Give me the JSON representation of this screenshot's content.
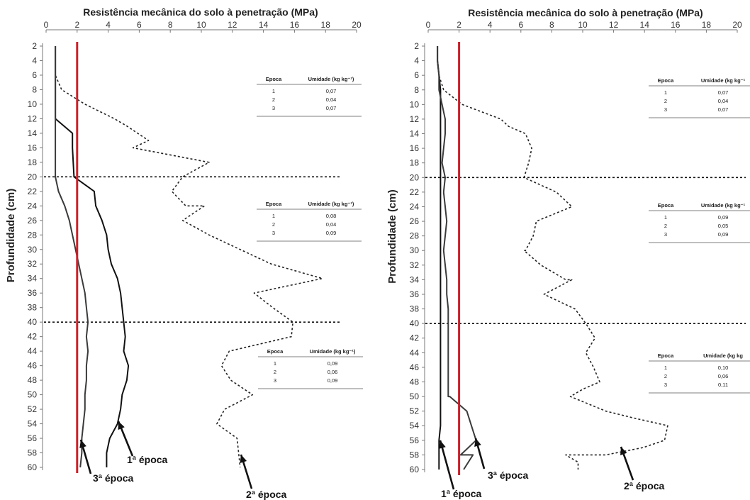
{
  "chart_data": [
    {
      "type": "line",
      "title": "Resistência mecânica do solo à penetração (MPa)",
      "ylabel": "Profundidade (cm)",
      "xlim": [
        0,
        20
      ],
      "ylim": [
        2,
        60
      ],
      "x_ticks": [
        0,
        2,
        4,
        6,
        8,
        10,
        12,
        14,
        16,
        18,
        20
      ],
      "y_ticks": [
        2,
        4,
        6,
        8,
        10,
        12,
        14,
        16,
        18,
        20,
        22,
        24,
        26,
        28,
        30,
        32,
        34,
        36,
        38,
        40,
        42,
        44,
        46,
        48,
        50,
        52,
        54,
        56,
        58,
        60
      ],
      "reference_line": {
        "x": 2,
        "color": "#c8202a"
      },
      "depth_dividers": [
        20,
        40
      ],
      "series": [
        {
          "name": "1ª época",
          "style": "solid",
          "x": [
            0.6,
            0.6,
            0.6,
            0.6,
            0.6,
            0.6,
            1.7,
            1.7,
            1.8,
            3.1,
            3.2,
            3.6,
            3.9,
            4.0,
            4.2,
            4.6,
            4.8,
            4.9,
            5.0,
            5.1,
            5.0,
            5.3,
            5.2,
            4.9,
            4.8,
            4.6,
            4.1,
            3.9,
            3.9,
            3.9
          ],
          "y": [
            2,
            4,
            6,
            8,
            10,
            12,
            14,
            16,
            20,
            22,
            24,
            26,
            28,
            30,
            32,
            34,
            36,
            38,
            40,
            42,
            44,
            46,
            48,
            50,
            52,
            54,
            56,
            58,
            60,
            60
          ]
        },
        {
          "name": "2ª época",
          "style": "dotted",
          "x": [
            0.6,
            0.6,
            0.6,
            1.0,
            2.5,
            4.4,
            5.2,
            6.6,
            5.6,
            10.5,
            8.8,
            8.1,
            9.0,
            10.2,
            8.8,
            10.5,
            12.5,
            14.5,
            17.8,
            13.4,
            14.6,
            15.9,
            15.8,
            11.8,
            11.3,
            11.9,
            13.3,
            11.5,
            11.0,
            12.3,
            12.5
          ],
          "y": [
            2,
            4,
            6,
            8,
            10,
            12,
            13,
            15,
            16,
            18,
            20,
            22,
            24,
            24,
            26,
            28,
            30,
            32,
            34,
            36,
            38,
            40,
            42,
            44,
            46,
            48,
            50,
            52,
            54,
            56,
            60
          ]
        },
        {
          "name": "3ª época",
          "style": "solid",
          "x": [
            0.6,
            0.6,
            0.6,
            0.6,
            0.6,
            0.6,
            0.6,
            0.6,
            0.6,
            0.6,
            0.8,
            1.2,
            1.5,
            1.7,
            1.9,
            2.1,
            2.3,
            2.5,
            2.6,
            2.7,
            2.6,
            2.7,
            2.6,
            2.6,
            2.5,
            2.5,
            2.4,
            2.3,
            2.3,
            2.2
          ],
          "y": [
            2,
            4,
            6,
            8,
            10,
            12,
            14,
            16,
            18,
            20,
            22,
            24,
            26,
            28,
            30,
            32,
            34,
            36,
            38,
            40,
            42,
            44,
            46,
            48,
            50,
            52,
            54,
            56,
            58,
            60
          ]
        }
      ],
      "tables": [
        {
          "header": [
            "Epoca",
            "Umidade (kg kg⁻¹)"
          ],
          "rows": [
            [
              "1",
              "0,07"
            ],
            [
              "2",
              "0,04"
            ],
            [
              "3",
              "0,07"
            ]
          ]
        },
        {
          "header": [
            "Epoca",
            "Umidade (kg kg⁻¹)"
          ],
          "rows": [
            [
              "1",
              "0,08"
            ],
            [
              "2",
              "0,04"
            ],
            [
              "3",
              "0,09"
            ]
          ]
        },
        {
          "header": [
            "Epoca",
            "Umidade (kg kg⁻¹)"
          ],
          "rows": [
            [
              "1",
              "0,09"
            ],
            [
              "2",
              "0,06"
            ],
            [
              "3",
              "0,09"
            ]
          ]
        }
      ],
      "annotations": [
        "1ª época",
        "3ª época",
        "2ª época"
      ]
    },
    {
      "type": "line",
      "title": "Resistência mecânica do solo à penetração (MPa)",
      "ylabel": "Profundidade (cm)",
      "xlim": [
        0,
        20
      ],
      "ylim": [
        2,
        60
      ],
      "x_ticks": [
        0,
        2,
        4,
        6,
        8,
        10,
        12,
        14,
        16,
        18,
        20
      ],
      "y_ticks": [
        2,
        4,
        6,
        8,
        10,
        12,
        14,
        16,
        18,
        20,
        22,
        24,
        26,
        28,
        30,
        32,
        34,
        36,
        38,
        40,
        42,
        44,
        46,
        48,
        50,
        52,
        54,
        56,
        58,
        60
      ],
      "reference_line": {
        "x": 2,
        "color": "#c8202a"
      },
      "depth_dividers": [
        20,
        40
      ],
      "series": [
        {
          "name": "1ª época",
          "style": "solid",
          "x": [
            0.6,
            0.6,
            0.7,
            0.8,
            0.8,
            0.8,
            0.8,
            0.8,
            0.8,
            0.8,
            0.8,
            0.8,
            0.8,
            0.8,
            0.8,
            0.8,
            0.8,
            0.8,
            0.8,
            0.8,
            0.8,
            0.8,
            0.8,
            0.8,
            0.8,
            0.8,
            0.8,
            0.7,
            0.7,
            0.7
          ],
          "y": [
            2,
            4,
            6,
            8,
            10,
            12,
            14,
            16,
            18,
            20,
            22,
            24,
            26,
            28,
            30,
            32,
            34,
            36,
            38,
            40,
            42,
            44,
            46,
            48,
            50,
            52,
            54,
            56,
            58,
            60
          ]
        },
        {
          "name": "2ª época",
          "style": "dotted",
          "x": [
            0.6,
            0.6,
            0.7,
            1.0,
            2.2,
            4.7,
            5.2,
            6.3,
            6.7,
            6.5,
            6.2,
            8.3,
            9.3,
            7.0,
            6.8,
            6.3,
            6.2,
            7.3,
            8.9,
            9.3,
            7.5,
            9.5,
            10.2,
            10.8,
            10.2,
            10.7,
            11.1,
            10.0,
            9.2,
            11.5,
            13.4,
            15.5,
            15.3,
            13.9,
            11.5,
            8.9,
            9.7,
            9.7
          ],
          "y": [
            2,
            4,
            6,
            8,
            10,
            12,
            13,
            14,
            16,
            18,
            20,
            22,
            24,
            26,
            28,
            30,
            30,
            32,
            34,
            34,
            36,
            38,
            40,
            42,
            44,
            46,
            48,
            49,
            50,
            52,
            53,
            54,
            56,
            57,
            58,
            58,
            59,
            60
          ]
        },
        {
          "name": "3ª época",
          "style": "solid",
          "x": [
            0.6,
            0.6,
            0.7,
            0.7,
            0.9,
            1.1,
            1.1,
            1.0,
            0.9,
            1.1,
            1.0,
            1.1,
            1.2,
            1.1,
            1.0,
            1.1,
            1.2,
            1.2,
            1.3,
            1.3,
            1.3,
            1.3,
            1.3,
            1.3,
            1.3,
            1.4,
            2.5,
            2.8,
            3.1,
            2.1,
            2.9,
            2.3
          ],
          "y": [
            2,
            4,
            6,
            8,
            10,
            12,
            14,
            16,
            18,
            20,
            22,
            24,
            26,
            28,
            30,
            32,
            34,
            36,
            38,
            40,
            42,
            44,
            46,
            48,
            50,
            50,
            52,
            54,
            56,
            58,
            58,
            60
          ]
        }
      ],
      "tables": [
        {
          "header": [
            "Epoca",
            "Umidade (kg kg⁻¹"
          ],
          "rows": [
            [
              "1",
              "0,07"
            ],
            [
              "2",
              "0,04"
            ],
            [
              "3",
              "0,07"
            ]
          ]
        },
        {
          "header": [
            "Epoca",
            "Umidade (kg kg⁻¹"
          ],
          "rows": [
            [
              "1",
              "0,09"
            ],
            [
              "2",
              "0,05"
            ],
            [
              "3",
              "0,09"
            ]
          ]
        },
        {
          "header": [
            "Epoca",
            "Umidade (kg kg"
          ],
          "rows": [
            [
              "1",
              "0,10"
            ],
            [
              "2",
              "0,06"
            ],
            [
              "3",
              "0,11"
            ]
          ]
        }
      ],
      "annotations": [
        "3ª época",
        "1ª época",
        "2ª época"
      ]
    }
  ]
}
